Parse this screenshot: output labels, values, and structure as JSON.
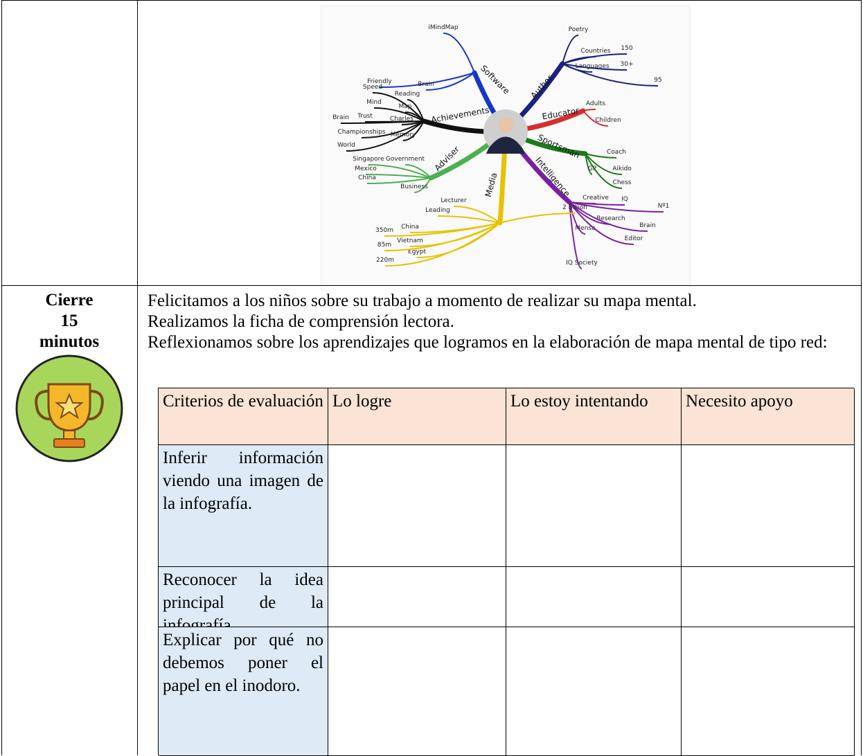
{
  "mind_map": {
    "branches": [
      {
        "label": "Software",
        "children": [
          "iMindMap",
          "Friendly",
          "Brain"
        ]
      },
      {
        "label": "Author",
        "children": [
          "Poetry",
          "Countries",
          "150",
          "Languages",
          "30+",
          "95"
        ]
      },
      {
        "label": "Educator",
        "children": [
          "Adults",
          "Children"
        ]
      },
      {
        "label": "Sportsman",
        "children": [
          "Coach",
          "GP",
          "Aikido",
          "Chess"
        ]
      },
      {
        "label": "Intelligence",
        "children": [
          "Creative",
          "IQ",
          "Nº1",
          "Research",
          "Brain",
          "Mensa",
          "Editor",
          "IQ Society"
        ]
      },
      {
        "label": "Media",
        "children": [
          "Lecturer",
          "Leading",
          "China",
          "Vietnam",
          "Egypt",
          "350m",
          "85m",
          "220m",
          "2 Billion"
        ]
      },
      {
        "label": "Adviser",
        "children": [
          "Government",
          "Singapore",
          "Mexico",
          "China",
          "Business"
        ]
      },
      {
        "label": "Achievements",
        "children": [
          "Speed",
          "Reading",
          "Mind",
          "Map",
          "Brain",
          "Trust",
          "Charles",
          "Championships",
          "Memory",
          "World"
        ]
      }
    ]
  },
  "closing": {
    "stage": [
      "Cierre",
      "15",
      "minutos"
    ],
    "paragraphs": [
      "Felicitamos a los niños sobre su trabajo a momento de realizar su mapa mental.",
      "Realizamos la ficha de comprensión lectora.",
      "Reflexionamos sobre los aprendizajes que logramos en la elaboración de mapa mental de tipo red:"
    ]
  },
  "table": {
    "header": [
      "Criterios de evaluación",
      "Lo logre",
      "Lo estoy intentando",
      "Necesito apoyo"
    ],
    "rows": [
      "Inferir información viendo una imagen de la infografía.",
      "Reconocer la idea principal de la infografía.",
      "Explicar por qué no debemos poner el papel en el inodoro."
    ]
  }
}
